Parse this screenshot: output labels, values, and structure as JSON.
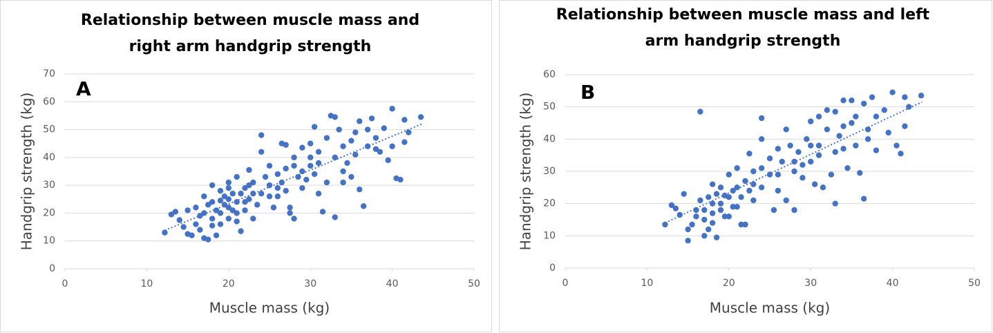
{
  "chart_data": [
    {
      "type": "scatter",
      "title": [
        "Relationship between muscle mass and",
        "right arm handgrip strength"
      ],
      "annotation": "A",
      "x_label": "Muscle mass (kg)",
      "y_label": "Handgrip strength (kg)",
      "color": "#4472c4",
      "grid": true,
      "xlim": [
        0,
        50
      ],
      "xticks": [
        0,
        10,
        20,
        30,
        40,
        50
      ],
      "ylim": [
        0,
        70
      ],
      "yticks": [
        0,
        10,
        20,
        30,
        40,
        50,
        60,
        70
      ],
      "x": [
        12.2,
        13,
        13.5,
        14,
        14.5,
        15,
        15.5,
        15,
        16,
        16.5,
        17,
        17.5,
        17,
        18,
        18.5,
        18,
        19,
        19,
        20,
        20,
        20.5,
        20,
        21,
        21,
        21.5,
        22,
        22,
        22.5,
        23,
        23,
        24,
        24,
        24,
        25,
        25,
        25.5,
        26,
        26,
        26.5,
        27,
        27,
        27.5,
        27.5,
        28,
        28,
        28.5,
        29,
        29,
        29.5,
        30,
        30,
        30.5,
        30.5,
        31,
        31,
        31.5,
        32,
        32,
        32.5,
        33,
        33,
        33,
        33.5,
        34,
        34,
        34.5,
        35,
        35,
        35.5,
        36,
        36,
        36.5,
        37,
        37,
        37.5,
        38,
        38,
        39,
        39.5,
        40,
        40,
        40.5,
        41,
        41.5,
        42,
        43.5,
        41.5,
        17,
        17.5,
        18,
        18.5,
        19,
        19.5,
        19.5,
        20,
        20.5,
        21,
        21.5,
        22,
        22.5,
        23,
        16,
        16.5,
        18,
        19,
        20,
        21,
        22.5,
        23.5,
        24.5,
        26,
        28,
        29,
        30,
        31,
        34,
        35.5,
        38.5,
        26.5,
        27,
        25
      ],
      "values": [
        13,
        19.5,
        20.5,
        17.5,
        15,
        12.5,
        12,
        21,
        22,
        19,
        11,
        10.5,
        26,
        30,
        12,
        24,
        28,
        16,
        22,
        25,
        27,
        31,
        20,
        33,
        13.5,
        29,
        24,
        35.5,
        31,
        18,
        48,
        42,
        27,
        37,
        30,
        22,
        34,
        26,
        45,
        44.5,
        36,
        22,
        20,
        18,
        40,
        33,
        43.5,
        29,
        32,
        37,
        45,
        51,
        34,
        42,
        27,
        20.5,
        47,
        31,
        55,
        54.5,
        18.5,
        40,
        50,
        44,
        31,
        38,
        46,
        33,
        49,
        53,
        28.5,
        22.5,
        50,
        44,
        54,
        47,
        43,
        50.5,
        39,
        57.5,
        44,
        32.5,
        32,
        53.5,
        49,
        54.5,
        45.5,
        20,
        23,
        18,
        21,
        20,
        23,
        26,
        18,
        21,
        24,
        27,
        21,
        25,
        27,
        16,
        14,
        15.5,
        24.5,
        29,
        17,
        30,
        23,
        33,
        29,
        37,
        35,
        40,
        38,
        35,
        41,
        42,
        31,
        28,
        26
      ],
      "trendline": {
        "x": [
          12.2,
          43.6
        ],
        "values": [
          13.8,
          52
        ]
      }
    },
    {
      "type": "scatter",
      "title": [
        "Relationship between muscle mass and left",
        "arm handgrip strength"
      ],
      "annotation": "B",
      "x_label": "Muscle mass (kg)",
      "y_label": "Handgrip strength (kg)",
      "color": "#4472c4",
      "grid": true,
      "xlim": [
        0,
        50
      ],
      "xticks": [
        0,
        10,
        20,
        30,
        40,
        50
      ],
      "ylim": [
        0,
        60
      ],
      "yticks": [
        0,
        10,
        20,
        30,
        40,
        50,
        60
      ],
      "x": [
        12.2,
        13,
        13.5,
        14,
        14.5,
        15,
        15,
        15.5,
        16,
        16.5,
        16.5,
        17,
        17,
        17.5,
        17.5,
        18,
        18.5,
        18,
        19,
        19,
        19.5,
        20,
        20,
        20.5,
        21,
        21,
        21.5,
        22,
        22,
        22.5,
        23,
        23,
        24,
        24,
        24,
        25,
        25,
        25.5,
        26,
        26,
        26.5,
        27,
        27,
        27.5,
        28,
        28,
        28.5,
        29,
        29.5,
        30,
        30,
        30.5,
        31,
        31,
        31.5,
        32,
        32,
        32.5,
        33,
        33,
        33.5,
        34,
        34,
        34.5,
        35,
        35,
        35.5,
        36,
        36.5,
        36.5,
        37,
        37.5,
        38,
        38,
        39,
        39.5,
        40,
        40.5,
        41,
        41.5,
        41.5,
        42,
        43.5,
        17,
        18,
        18.5,
        19,
        19.5,
        20.5,
        21,
        21.5,
        22.5,
        23,
        16,
        18,
        20,
        24,
        26,
        28,
        29,
        30,
        31,
        33,
        34,
        35.5,
        37
      ],
      "values": [
        13.5,
        19.5,
        18.5,
        16.5,
        23,
        8.5,
        12,
        13.5,
        18,
        21,
        48.5,
        10,
        15,
        22,
        12,
        26,
        9.5,
        17,
        25,
        20,
        16,
        22,
        29,
        24,
        31,
        19,
        13.5,
        27,
        13.5,
        35.5,
        30,
        21,
        46.5,
        40,
        25,
        34,
        29,
        18,
        37,
        24,
        33,
        43,
        21,
        38,
        18,
        30,
        36,
        28,
        40,
        45.5,
        33,
        26,
        47,
        38,
        25,
        49,
        43,
        29,
        48.5,
        20,
        41,
        52,
        37,
        31,
        52,
        45,
        47,
        29.5,
        21.5,
        51,
        43,
        53,
        47,
        36.5,
        49,
        42,
        54.5,
        38,
        35.5,
        44,
        53,
        50,
        53.5,
        18,
        20,
        23,
        18,
        22.5,
        19,
        25,
        22,
        24,
        26,
        16,
        14,
        16,
        31,
        29,
        33,
        32,
        38,
        35,
        36,
        44,
        38,
        40
      ],
      "trendline": {
        "x": [
          12.2,
          43.6
        ],
        "values": [
          14,
          51.5
        ]
      }
    }
  ]
}
